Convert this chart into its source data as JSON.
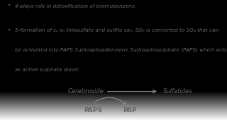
{
  "bg_color_top": "#c8c8c8",
  "bg_color_bottom": "#e8e8e8",
  "bullet1": "4-plays role in detoxification of bromobenzene.",
  "bullet2_line1": "5-formation of s₂ a₃ thiosulfate and sulfite sa₃. SO₃ is converted to SO₄ that can",
  "bullet2_line2": "be activated into PAPS 3-phosphoadenosine 5-phosphosulphate (PAPS) which acts",
  "bullet2_line3": "as active sulphate donor.",
  "label_cerebroside": "Cerebroside",
  "label_sulfatides": "Sulfatides",
  "label_paps": "PAPS",
  "label_pap": "PAP",
  "text_color": "#666666",
  "arrow_color": "#888888",
  "font_size_bullet": 5.2,
  "font_size_diagram": 6.0
}
